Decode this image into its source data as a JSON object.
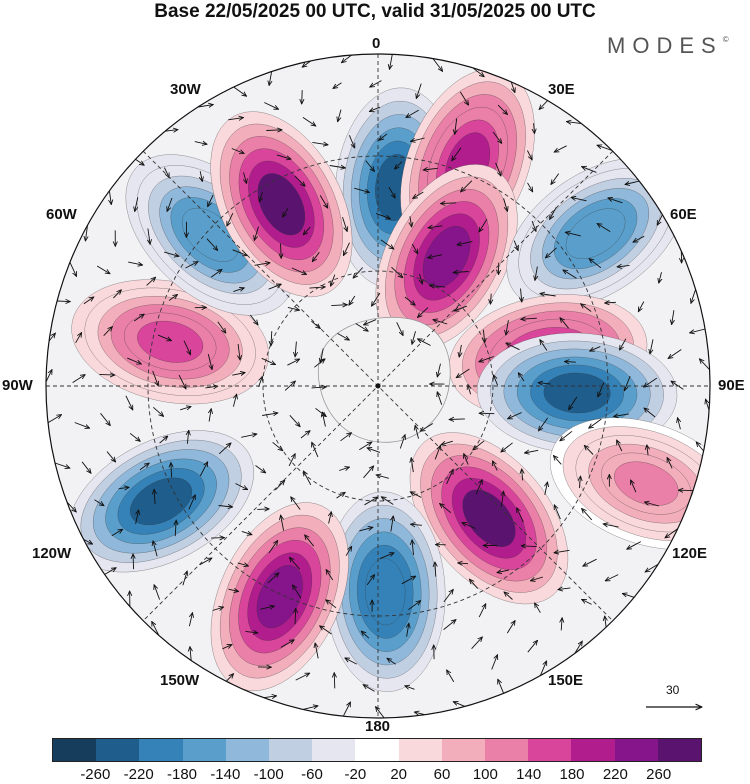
{
  "title": "Base 22/05/2025 00 UTC, valid 31/05/2025 00 UTC",
  "brand": "MODES",
  "brand_mark": "©",
  "longitude_labels": {
    "lon_0": "0",
    "lon_30e": "30E",
    "lon_60e": "60E",
    "lon_90e": "90E",
    "lon_120e": "120E",
    "lon_150e": "150E",
    "lon_180": "180",
    "lon_150w": "150W",
    "lon_120w": "120W",
    "lon_90w": "90W",
    "lon_60w": "60W",
    "lon_30w": "30W"
  },
  "reference_vector": {
    "value": "30"
  },
  "colorbar": {
    "colors": [
      "#173d5c",
      "#1f5e8c",
      "#3582b8",
      "#5a9fcb",
      "#8fb8da",
      "#c1cfe3",
      "#e6e6f0",
      "#ffffff",
      "#f9d9dc",
      "#f3aebb",
      "#ea7fa7",
      "#d9459b",
      "#b21d8e",
      "#86148a",
      "#5a1470"
    ],
    "ticks": [
      "-260",
      "-220",
      "-180",
      "-140",
      "-100",
      "-60",
      "-20",
      "20",
      "60",
      "100",
      "140",
      "180",
      "220",
      "260"
    ]
  },
  "map_data": {
    "projection": "south-polar-stereographic",
    "field_units": "contour shading",
    "anomaly_centres": [
      {
        "lon": 5,
        "ring": 0.6,
        "value": -260
      },
      {
        "lon": 22,
        "ring": 0.72,
        "value": 200
      },
      {
        "lon": 28,
        "ring": 0.44,
        "value": 220
      },
      {
        "lon": 55,
        "ring": 0.8,
        "value": -180
      },
      {
        "lon": 80,
        "ring": 0.52,
        "value": 200
      },
      {
        "lon": 92,
        "ring": 0.6,
        "value": -260
      },
      {
        "lon": 110,
        "ring": 0.86,
        "value": 100
      },
      {
        "lon": 140,
        "ring": 0.52,
        "value": 260
      },
      {
        "lon": 178,
        "ring": 0.62,
        "value": -220
      },
      {
        "lon": 205,
        "ring": 0.7,
        "value": 240
      },
      {
        "lon": 242,
        "ring": 0.74,
        "value": -260
      },
      {
        "lon": 282,
        "ring": 0.64,
        "value": 160
      },
      {
        "lon": 312,
        "ring": 0.68,
        "value": -180
      },
      {
        "lon": 332,
        "ring": 0.62,
        "value": 260
      }
    ]
  }
}
